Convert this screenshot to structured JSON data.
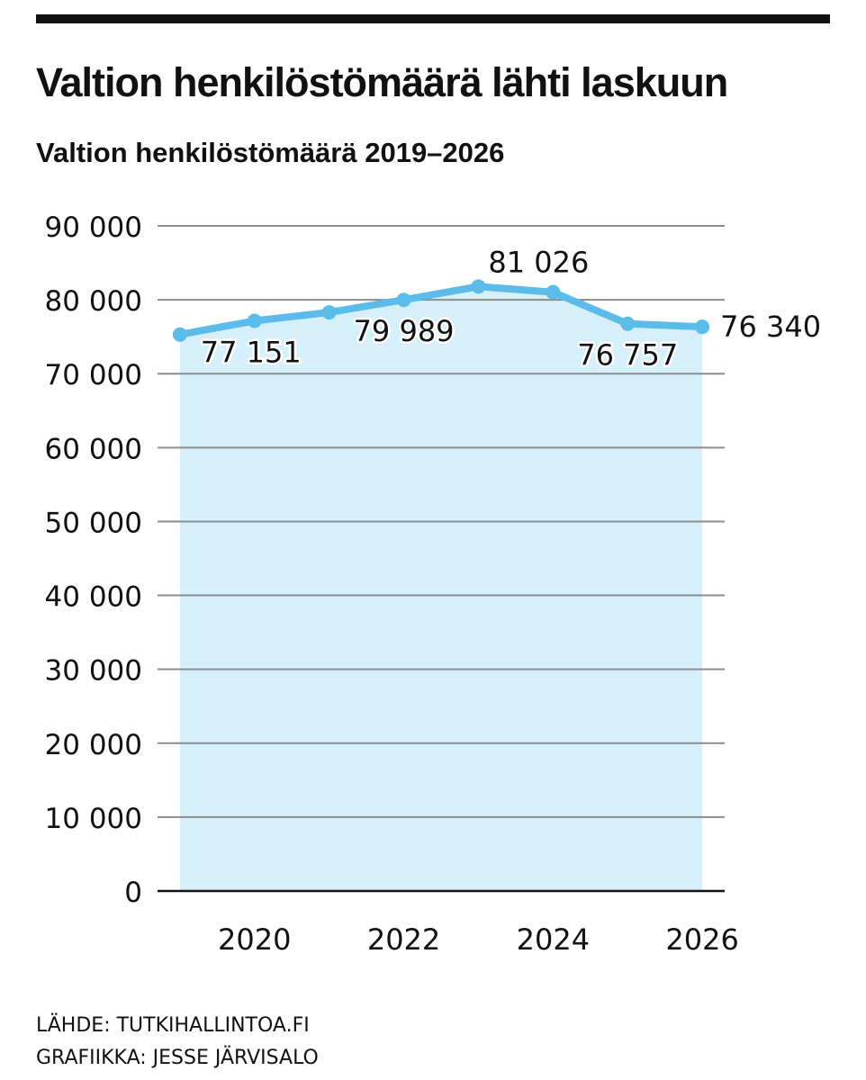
{
  "header": {
    "title": "Valtion henkilöstömäärä lähti laskuun",
    "subtitle": "Valtion henkilöstömäärä 2019–2026"
  },
  "footer": {
    "source": "LÄHDE: TUTKIHALLINTOA.FI",
    "credit": "GRAFIIKKA: JESSE JÄRVISALO"
  },
  "chart_data": {
    "type": "area",
    "title": "Valtion henkilöstömäärä 2019–2026",
    "xlabel": "",
    "ylabel": "",
    "x": [
      2019,
      2020,
      2021,
      2022,
      2023,
      2024,
      2025,
      2026
    ],
    "values": [
      75300,
      77151,
      78300,
      79989,
      81800,
      81026,
      76757,
      76340
    ],
    "xlim": [
      2018.7,
      2026.3
    ],
    "ylim": [
      0,
      90000
    ],
    "yticks": [
      0,
      10000,
      20000,
      30000,
      40000,
      50000,
      60000,
      70000,
      80000,
      90000
    ],
    "ytick_labels": [
      "0",
      "10 000",
      "20 000",
      "30 000",
      "40 000",
      "50 000",
      "60 000",
      "70 000",
      "80 000",
      "90 000"
    ],
    "xticks": [
      2020,
      2022,
      2024,
      2026
    ],
    "xtick_labels": [
      "2020",
      "2022",
      "2024",
      "2026"
    ],
    "data_labels": [
      {
        "x": 2020,
        "text": "77 151",
        "position": "below"
      },
      {
        "x": 2022,
        "text": "79 989",
        "position": "below"
      },
      {
        "x": 2024,
        "text": "81 026",
        "position": "above"
      },
      {
        "x": 2025,
        "text": "76 757",
        "position": "below"
      },
      {
        "x": 2026,
        "text": "76 340",
        "position": "right"
      }
    ],
    "grid": true,
    "colors": {
      "line": "#5bbcea",
      "fill": "#d6f0fb",
      "grid": "#8c8c8c",
      "axis": "#111111",
      "text": "#111111"
    }
  }
}
